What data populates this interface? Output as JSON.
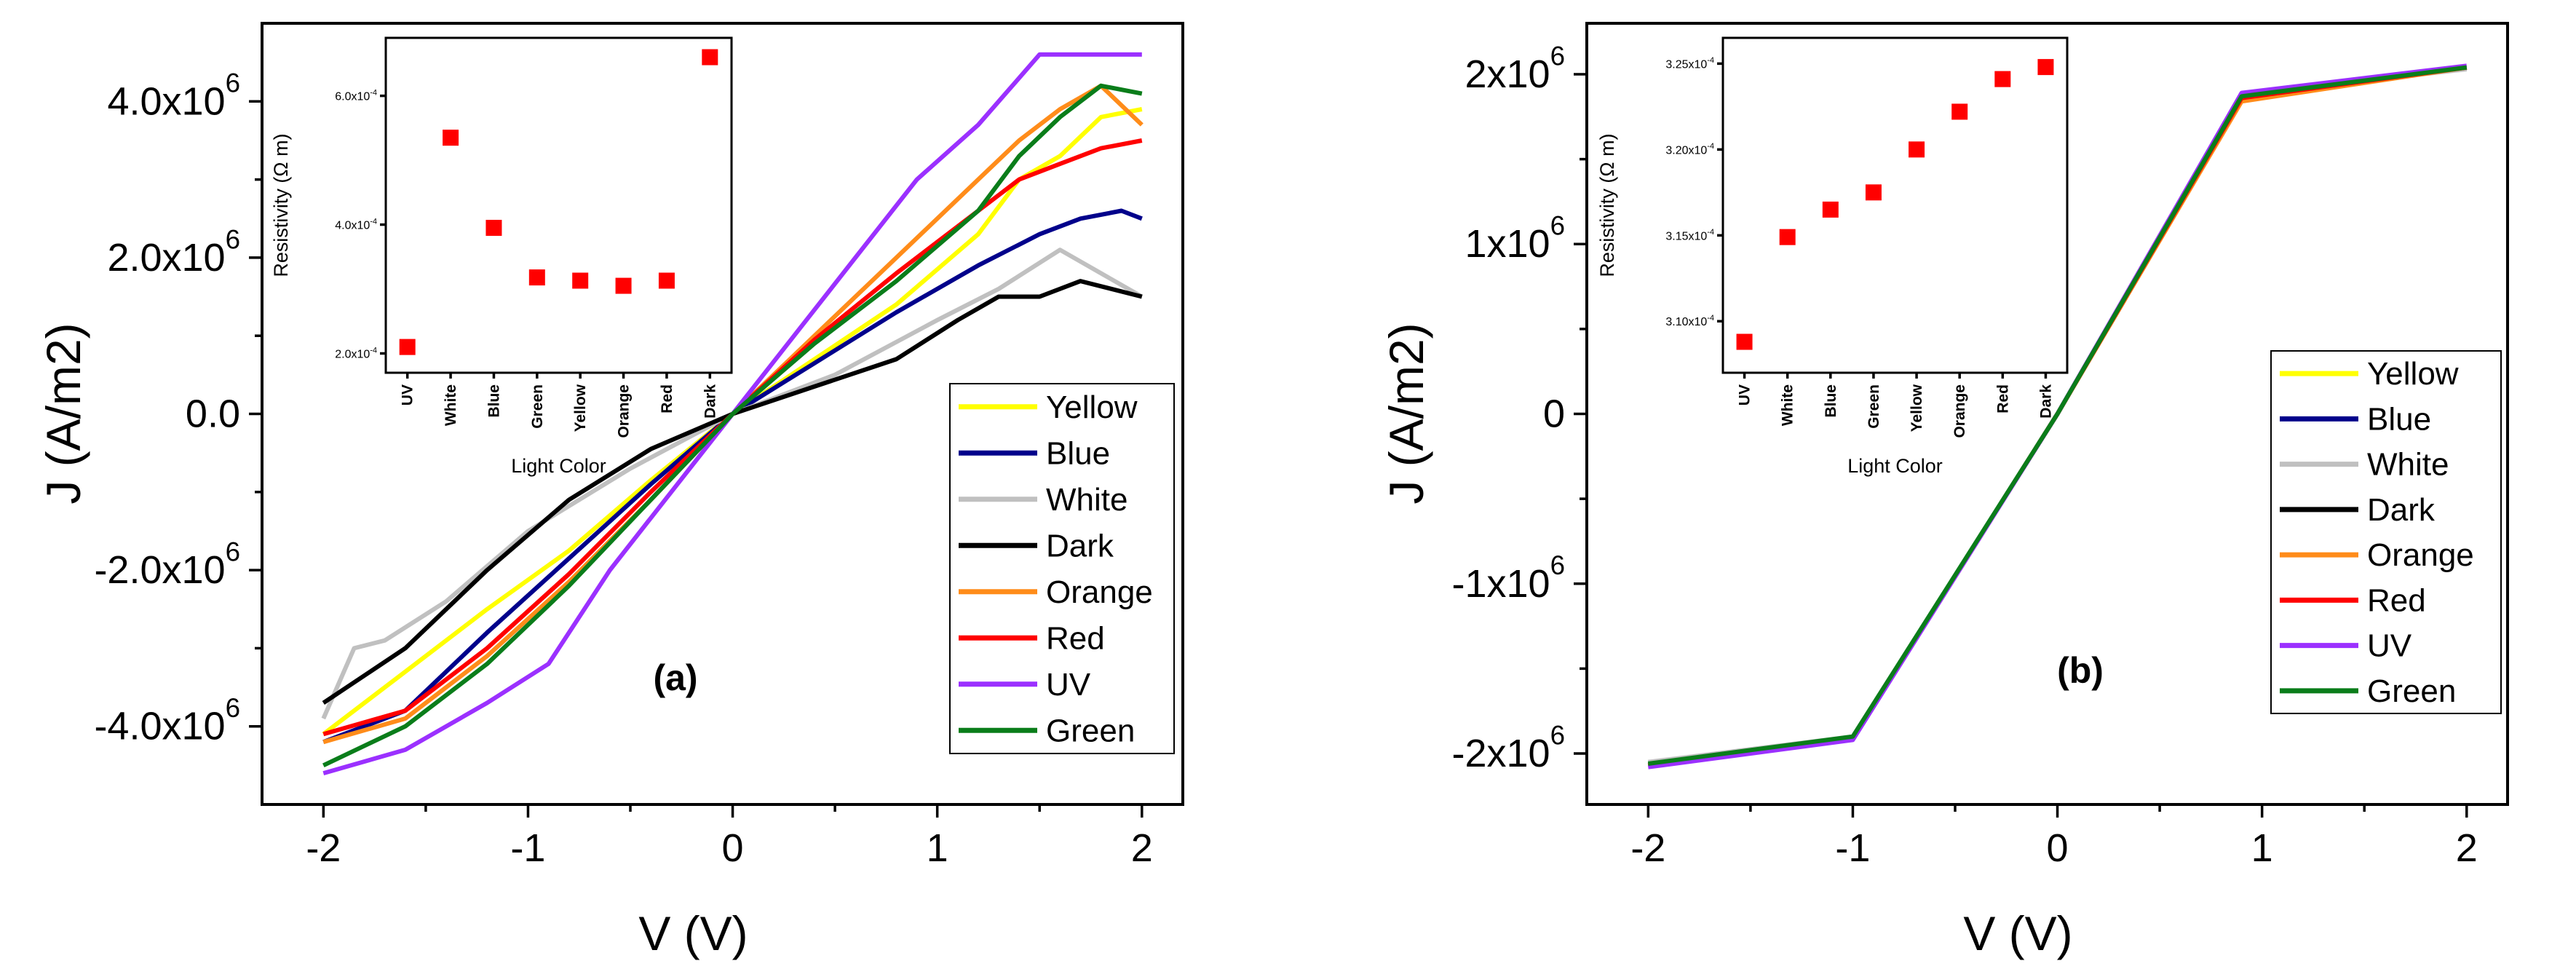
{
  "chart_data": [
    {
      "type": "line",
      "panel_label": "(a)",
      "xlabel": "V (V)",
      "ylabel": "J (A/m2)",
      "xlim": [
        -2.3,
        2.2
      ],
      "ylim": [
        -5000000,
        5000000
      ],
      "xticks": [
        -2,
        -1,
        0,
        1,
        2
      ],
      "xtick_labels": [
        "-2",
        "-1",
        "0",
        "1",
        "2"
      ],
      "yticks": [
        -4000000,
        -2000000,
        0,
        2000000,
        4000000
      ],
      "ytick_labels": [
        "-4.0x10",
        "-2.0x10",
        "0.0",
        "2.0x10",
        "4.0x10"
      ],
      "ytick_exponents": [
        "6",
        "6",
        "",
        "6",
        "6"
      ],
      "legend": [
        "Yellow",
        "Blue",
        "White",
        "Dark",
        "Orange",
        "Red",
        "UV",
        "Green"
      ],
      "legend_position": "bottom-right",
      "series": [
        {
          "name": "Yellow",
          "color": "#ffff00",
          "x": [
            -2,
            -1.6,
            -1.2,
            -0.8,
            -0.4,
            0,
            0.4,
            0.8,
            1.2,
            1.4,
            1.6,
            1.8,
            2
          ],
          "y": [
            -4100000,
            -3300000,
            -2500000,
            -1750000,
            -850000,
            0,
            700000,
            1400000,
            2300000,
            3000000,
            3300000,
            3800000,
            3900000
          ]
        },
        {
          "name": "Blue",
          "color": "#00008b",
          "x": [
            -2,
            -1.6,
            -1.2,
            -0.8,
            -0.4,
            0,
            0.4,
            0.8,
            1.2,
            1.5,
            1.7,
            1.9,
            2
          ],
          "y": [
            -4200000,
            -3800000,
            -2800000,
            -1850000,
            -900000,
            0,
            650000,
            1300000,
            1900000,
            2300000,
            2500000,
            2600000,
            2500000
          ]
        },
        {
          "name": "White",
          "color": "#c0c0c0",
          "x": [
            -2,
            -1.85,
            -1.7,
            -1.4,
            -1.0,
            -0.5,
            0,
            0.5,
            1.0,
            1.3,
            1.6,
            1.8,
            2
          ],
          "y": [
            -3900000,
            -3000000,
            -2900000,
            -2400000,
            -1500000,
            -700000,
            0,
            500000,
            1200000,
            1600000,
            2100000,
            1800000,
            1500000
          ]
        },
        {
          "name": "Dark",
          "color": "#000000",
          "x": [
            -2,
            -1.6,
            -1.2,
            -0.8,
            -0.4,
            0,
            0.4,
            0.8,
            1.1,
            1.3,
            1.5,
            1.7,
            2
          ],
          "y": [
            -3700000,
            -3000000,
            -2000000,
            -1100000,
            -450000,
            0,
            350000,
            700000,
            1200000,
            1500000,
            1500000,
            1700000,
            1500000
          ]
        },
        {
          "name": "Orange",
          "color": "#ff8c1a",
          "x": [
            -2,
            -1.6,
            -1.2,
            -0.8,
            -0.4,
            0,
            0.4,
            0.8,
            1.2,
            1.4,
            1.6,
            1.8,
            2
          ],
          "y": [
            -4200000,
            -3900000,
            -3100000,
            -2150000,
            -1100000,
            0,
            1000000,
            2000000,
            3000000,
            3500000,
            3900000,
            4200000,
            3700000
          ]
        },
        {
          "name": "Red",
          "color": "#ff0000",
          "x": [
            -2,
            -1.6,
            -1.2,
            -0.8,
            -0.4,
            0,
            0.4,
            0.8,
            1.2,
            1.4,
            1.6,
            1.8,
            2
          ],
          "y": [
            -4100000,
            -3800000,
            -3000000,
            -2050000,
            -1000000,
            0,
            950000,
            1800000,
            2600000,
            3000000,
            3200000,
            3400000,
            3500000
          ]
        },
        {
          "name": "UV",
          "color": "#9b30ff",
          "x": [
            -2,
            -1.6,
            -1.2,
            -0.9,
            -0.6,
            -0.3,
            0,
            0.3,
            0.6,
            0.9,
            1.2,
            1.5,
            2
          ],
          "y": [
            -4600000,
            -4300000,
            -3700000,
            -3200000,
            -2000000,
            -1000000,
            0,
            1000000,
            2000000,
            3000000,
            3700000,
            4600000,
            4600000
          ]
        },
        {
          "name": "Green",
          "color": "#0a7d1a",
          "x": [
            -2,
            -1.6,
            -1.2,
            -0.8,
            -0.4,
            0,
            0.4,
            0.8,
            1.2,
            1.4,
            1.6,
            1.8,
            2
          ],
          "y": [
            -4500000,
            -4000000,
            -3200000,
            -2200000,
            -1100000,
            0,
            900000,
            1700000,
            2600000,
            3300000,
            3800000,
            4200000,
            4100000
          ]
        }
      ],
      "inset": {
        "type": "scatter",
        "ylabel": "Resistivity (Ω m)",
        "xlabel": "Light Color",
        "categories": [
          "UV",
          "White",
          "Blue",
          "Green",
          "Yellow",
          "Orange",
          "Red",
          "Dark"
        ],
        "values": [
          0.00021,
          0.000535,
          0.000395,
          0.000318,
          0.000313,
          0.000305,
          0.000313,
          0.00066
        ],
        "ylim": [
          0.00017,
          0.00069
        ],
        "yticks": [
          0.0002,
          0.0004,
          0.0006
        ],
        "ytick_labels": [
          "2.0x10",
          "4.0x10",
          "6.0x10"
        ],
        "ytick_exponents": [
          "-4",
          "-4",
          "-4"
        ],
        "marker_color": "#ff0000"
      }
    },
    {
      "type": "line",
      "panel_label": "(b)",
      "xlabel": "V (V)",
      "ylabel": "J (A/m2)",
      "xlim": [
        -2.3,
        2.2
      ],
      "ylim": [
        -2300000,
        2300000
      ],
      "xticks": [
        -2,
        -1,
        0,
        1,
        2
      ],
      "xtick_labels": [
        "-2",
        "-1",
        "0",
        "1",
        "2"
      ],
      "yticks": [
        -2000000,
        -1000000,
        0,
        1000000,
        2000000
      ],
      "ytick_labels": [
        "-2x10",
        "-1x10",
        "0",
        "1x10",
        "2x10"
      ],
      "ytick_exponents": [
        "6",
        "6",
        "",
        "6",
        "6"
      ],
      "legend": [
        "Yellow",
        "Blue",
        "White",
        "Dark",
        "Orange",
        "Red",
        "UV",
        "Green"
      ],
      "legend_position": "bottom-right",
      "series": [
        {
          "name": "Yellow",
          "color": "#ffff00",
          "x": [
            -2,
            -1,
            0,
            0.9,
            2
          ],
          "y": [
            -2070000,
            -1910000,
            0,
            1860000,
            2040000
          ]
        },
        {
          "name": "Blue",
          "color": "#00008b",
          "x": [
            -2,
            -1,
            0,
            0.9,
            2
          ],
          "y": [
            -2070000,
            -1910000,
            0,
            1880000,
            2040000
          ]
        },
        {
          "name": "White",
          "color": "#c0c0c0",
          "x": [
            -2,
            -1,
            0,
            0.9,
            2
          ],
          "y": [
            -2050000,
            -1900000,
            0,
            1880000,
            2030000
          ]
        },
        {
          "name": "Dark",
          "color": "#000000",
          "x": [
            -2,
            -1,
            0,
            0.9,
            2
          ],
          "y": [
            -2070000,
            -1910000,
            0,
            1880000,
            2040000
          ]
        },
        {
          "name": "Orange",
          "color": "#ff8c1a",
          "x": [
            -2,
            -1,
            0,
            0.9,
            2
          ],
          "y": [
            -2070000,
            -1910000,
            0,
            1840000,
            2040000
          ]
        },
        {
          "name": "Red",
          "color": "#ff0000",
          "x": [
            -2,
            -1,
            0,
            0.9,
            2
          ],
          "y": [
            -2070000,
            -1910000,
            0,
            1860000,
            2040000
          ]
        },
        {
          "name": "UV",
          "color": "#9b30ff",
          "x": [
            -2,
            -1,
            0,
            0.9,
            2
          ],
          "y": [
            -2080000,
            -1920000,
            0,
            1890000,
            2050000
          ]
        },
        {
          "name": "Green",
          "color": "#0a7d1a",
          "x": [
            -2,
            -1,
            0,
            0.9,
            2
          ],
          "y": [
            -2060000,
            -1900000,
            0,
            1870000,
            2040000
          ]
        }
      ],
      "inset": {
        "type": "scatter",
        "ylabel": "Resistivity (Ω m)",
        "xlabel": "Light Color",
        "categories": [
          "UV",
          "White",
          "Blue",
          "Green",
          "Yellow",
          "Orange",
          "Red",
          "Dark"
        ],
        "values": [
          0.0003088,
          0.0003149,
          0.0003165,
          0.0003175,
          0.00032,
          0.0003222,
          0.0003241,
          0.0003248
        ],
        "ylim": [
          0.000307,
          0.0003265
        ],
        "yticks": [
          0.00031,
          0.000315,
          0.00032,
          0.000325
        ],
        "ytick_labels": [
          "3.10x10",
          "3.15x10",
          "3.20x10",
          "3.25x10"
        ],
        "ytick_exponents": [
          "-4",
          "-4",
          "-4",
          "-4"
        ],
        "marker_color": "#ff0000"
      }
    }
  ]
}
